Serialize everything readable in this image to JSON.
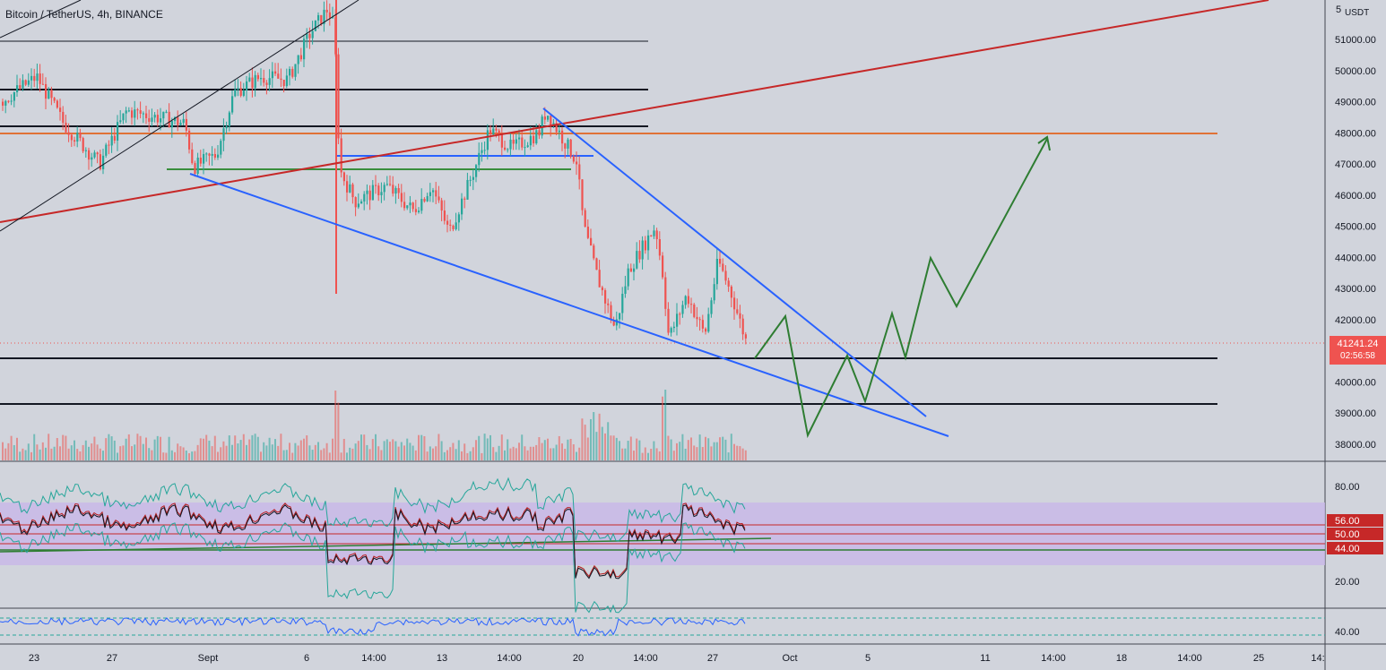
{
  "header": {
    "symbol": "Bitcoin / TetherUS, 4h, BINANCE"
  },
  "price_axis": {
    "currency": "USDT",
    "top_partial": "5",
    "ticks": [
      "51000.00",
      "50000.00",
      "49000.00",
      "48000.00",
      "47000.00",
      "46000.00",
      "45000.00",
      "44000.00",
      "43000.00",
      "42000.00",
      "41000.00",
      "40000.00",
      "39000.00",
      "38000.00"
    ],
    "last_price": "41241.24",
    "countdown": "02:56:58"
  },
  "rsi_axis": {
    "ticks": [
      "80.00",
      "20.00"
    ],
    "levels": [
      "56.00",
      "50.00",
      "44.00"
    ]
  },
  "osc_axis": {
    "ticks": [
      "40.00"
    ]
  },
  "time_axis": {
    "labels": [
      "23",
      "27",
      "Sept",
      "6",
      "14:00",
      "13",
      "14:00",
      "20",
      "14:00",
      "27",
      "Oct",
      "5",
      "11",
      "14:00",
      "18",
      "14:00",
      "25",
      "14:"
    ]
  },
  "colors": {
    "bg": "#d1d4dc",
    "up": "#26a69a",
    "down": "#ef5350",
    "trend_red": "#c62828",
    "trend_blue": "#2962ff",
    "projection": "#2e7d32",
    "level_orange": "#e65100",
    "rsi_band": "#c8b6e8"
  },
  "chart_data": [
    {
      "type": "candlestick",
      "symbol": "BTC/USDT",
      "timeframe": "4h",
      "y_range": [
        38000,
        52000
      ],
      "last_price": 41241.24,
      "horizontal_levels": [
        51200,
        49400,
        48200,
        48000,
        47280,
        46800,
        40750,
        39250
      ],
      "projection_path": [
        [
          0,
          40800
        ],
        [
          1,
          42100
        ],
        [
          2,
          38400
        ],
        [
          3,
          40800
        ],
        [
          4,
          39300
        ],
        [
          5,
          42200
        ],
        [
          6,
          40800
        ],
        [
          7,
          43900
        ],
        [
          8,
          42500
        ],
        [
          9,
          47900
        ]
      ]
    },
    {
      "type": "line",
      "name": "RSI",
      "y_range": [
        0,
        100
      ],
      "levels": [
        56,
        50,
        44
      ]
    }
  ]
}
